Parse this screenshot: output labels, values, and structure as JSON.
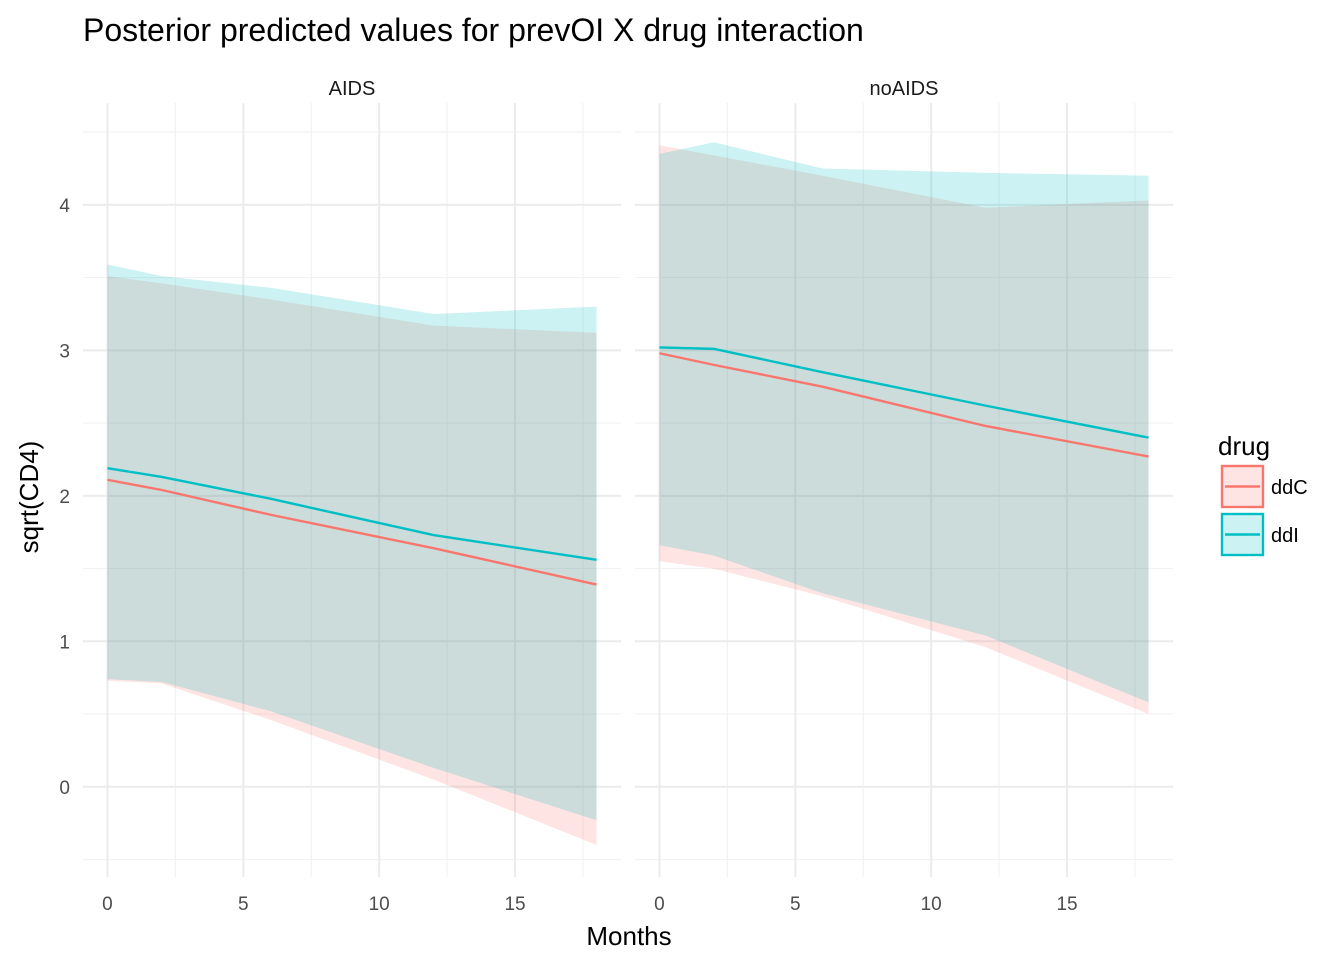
{
  "chart_data": {
    "type": "area",
    "title": "Posterior predicted values for prevOI X drug interaction",
    "xlabel": "Months",
    "ylabel": "sqrt(CD4)",
    "xlim": [
      -0.9,
      18.9
    ],
    "ylim": [
      -0.62,
      4.7
    ],
    "x_ticks": [
      0,
      5,
      10,
      15
    ],
    "y_ticks": [
      0,
      1,
      2,
      3,
      4
    ],
    "grid": true,
    "legend": {
      "title": "drug",
      "position": "right",
      "entries": [
        {
          "label": "ddC",
          "color": "#F8766D"
        },
        {
          "label": "ddI",
          "color": "#00BFC4"
        }
      ]
    },
    "panels": [
      {
        "strip": "AIDS",
        "series": [
          {
            "name": "ddC",
            "color": "#F8766D",
            "x": [
              0,
              2,
              6,
              12,
              18
            ],
            "mean": [
              2.11,
              2.04,
              1.87,
              1.64,
              1.39
            ],
            "lower": [
              0.73,
              0.71,
              0.46,
              0.05,
              -0.4
            ],
            "upper": [
              3.51,
              3.46,
              3.35,
              3.17,
              3.12
            ]
          },
          {
            "name": "ddI",
            "color": "#00BFC4",
            "x": [
              0,
              2,
              6,
              12,
              18
            ],
            "mean": [
              2.19,
              2.13,
              1.98,
              1.73,
              1.56
            ],
            "lower": [
              0.74,
              0.72,
              0.52,
              0.13,
              -0.23
            ],
            "upper": [
              3.59,
              3.51,
              3.43,
              3.25,
              3.3
            ]
          }
        ]
      },
      {
        "strip": "noAIDS",
        "series": [
          {
            "name": "ddC",
            "color": "#F8766D",
            "x": [
              0,
              2,
              6,
              12,
              18
            ],
            "mean": [
              2.98,
              2.9,
              2.75,
              2.48,
              2.27
            ],
            "lower": [
              1.55,
              1.5,
              1.31,
              0.96,
              0.5
            ],
            "upper": [
              4.41,
              4.34,
              4.2,
              3.98,
              4.03
            ]
          },
          {
            "name": "ddI",
            "color": "#00BFC4",
            "x": [
              0,
              2,
              6,
              12,
              18
            ],
            "mean": [
              3.02,
              3.01,
              2.85,
              2.62,
              2.4
            ],
            "lower": [
              1.66,
              1.59,
              1.33,
              1.04,
              0.58
            ],
            "upper": [
              4.35,
              4.43,
              4.25,
              4.22,
              4.2
            ]
          }
        ]
      }
    ]
  }
}
